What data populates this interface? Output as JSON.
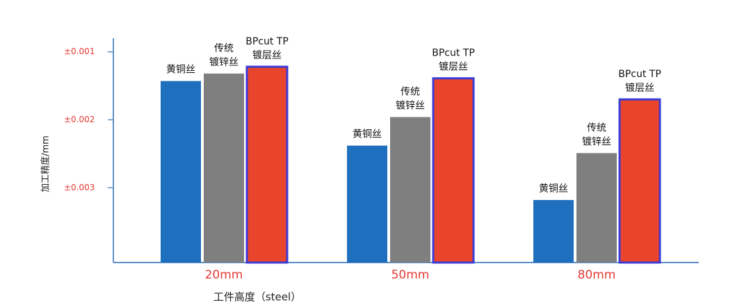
{
  "chart_data": {
    "type": "bar",
    "y_label": "加工精度/mm",
    "x_label": "工件高度（steel）",
    "categories": [
      "20mm",
      "50mm",
      "80mm"
    ],
    "series": [
      {
        "name": "黄铜丝",
        "color": "#1f6fbf",
        "values": [
          0.00143,
          0.00238,
          0.00318
        ]
      },
      {
        "name": "传统\n镀锌丝",
        "color": "#7f7f7f",
        "values": [
          0.00132,
          0.00196,
          0.00249
        ]
      },
      {
        "name": "BPcut TP\n镀层丝",
        "color": "#e8452c",
        "stroke": "#3b3bd6",
        "values": [
          0.00122,
          0.00139,
          0.0017
        ]
      }
    ],
    "ylim": [
      0.0041,
      0.0008
    ],
    "yticks": [
      {
        "value": 0.001,
        "label": "±0.001"
      },
      {
        "value": 0.002,
        "label": "±0.002"
      },
      {
        "value": 0.003,
        "label": "±0.003"
      }
    ]
  }
}
